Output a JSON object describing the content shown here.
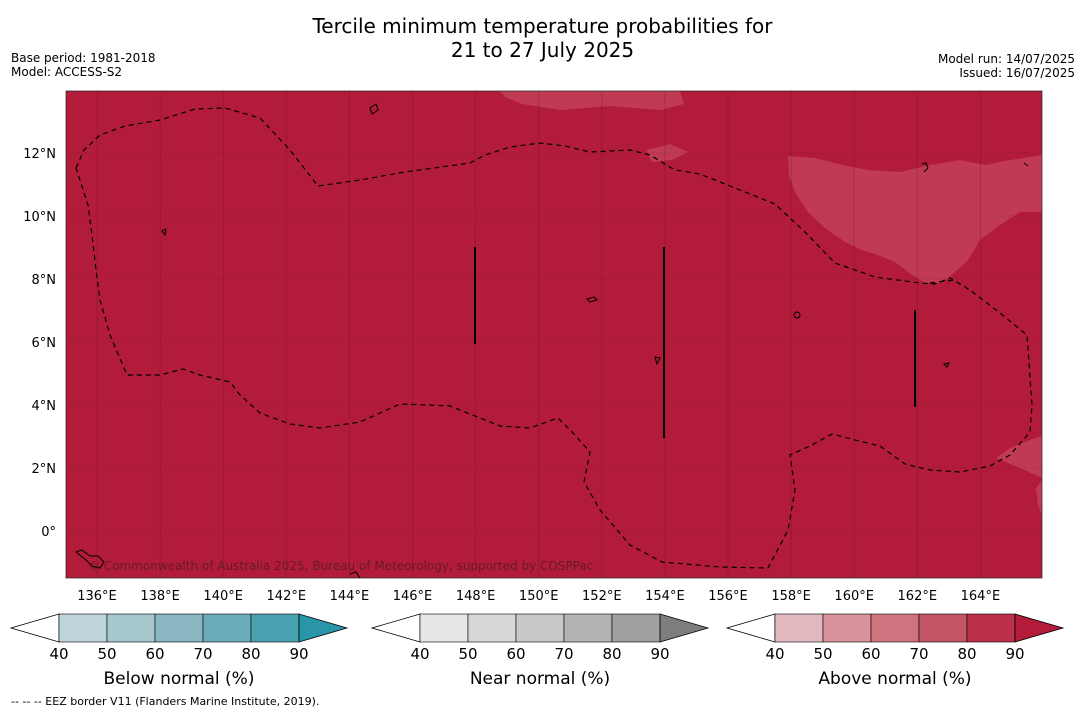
{
  "title": {
    "line1": "Tercile minimum temperature probabilities for",
    "line2": "21 to 27 July 2025"
  },
  "info_left": {
    "base_period": "Base period: 1981-2018",
    "model": "Model: ACCESS-S2"
  },
  "info_right": {
    "model_run": "Model run: 14/07/2025",
    "issued": "Issued: 16/07/2025"
  },
  "map": {
    "lat_ticks": [
      "12°N",
      "10°N",
      "8°N",
      "6°N",
      "4°N",
      "2°N",
      "0°"
    ],
    "lon_ticks": [
      "136°E",
      "138°E",
      "140°E",
      "142°E",
      "144°E",
      "146°E",
      "148°E",
      "150°E",
      "152°E",
      "154°E",
      "156°E",
      "158°E",
      "160°E",
      "162°E",
      "164°E"
    ],
    "dominant_category": "Above normal",
    "dominant_probability_range": "80-90",
    "base_color": "#b21c3a",
    "lighter_patch_color": "#bf3a52",
    "copyright": "© Commonwealth of Australia 2025, Bureau of Meteorology, supported by COSPPac"
  },
  "colorbars": [
    {
      "title": "Below normal (%)",
      "ticks": [
        "40",
        "50",
        "60",
        "70",
        "80",
        "90"
      ],
      "colors": [
        "#ffffff",
        "#bcd4da",
        "#a7c7cf",
        "#8ab6c2",
        "#6baab8",
        "#47a1b1",
        "#2a95a8"
      ]
    },
    {
      "title": "Near normal (%)",
      "ticks": [
        "40",
        "50",
        "60",
        "70",
        "80",
        "90"
      ],
      "colors": [
        "#ffffff",
        "#e7e7e7",
        "#d7d7d7",
        "#c9c9c9",
        "#b4b4b4",
        "#a0a0a0",
        "#7d7d7d"
      ]
    },
    {
      "title": "Above normal (%)",
      "ticks": [
        "40",
        "50",
        "60",
        "70",
        "80",
        "90"
      ],
      "colors": [
        "#ffffff",
        "#e2b9bf",
        "#d7949c",
        "#ce747f",
        "#c45565",
        "#bb3048",
        "#b21c3a"
      ]
    }
  ],
  "footnote": "--  --  -- EEZ border V11 (Flanders Marine Institute, 2019)."
}
